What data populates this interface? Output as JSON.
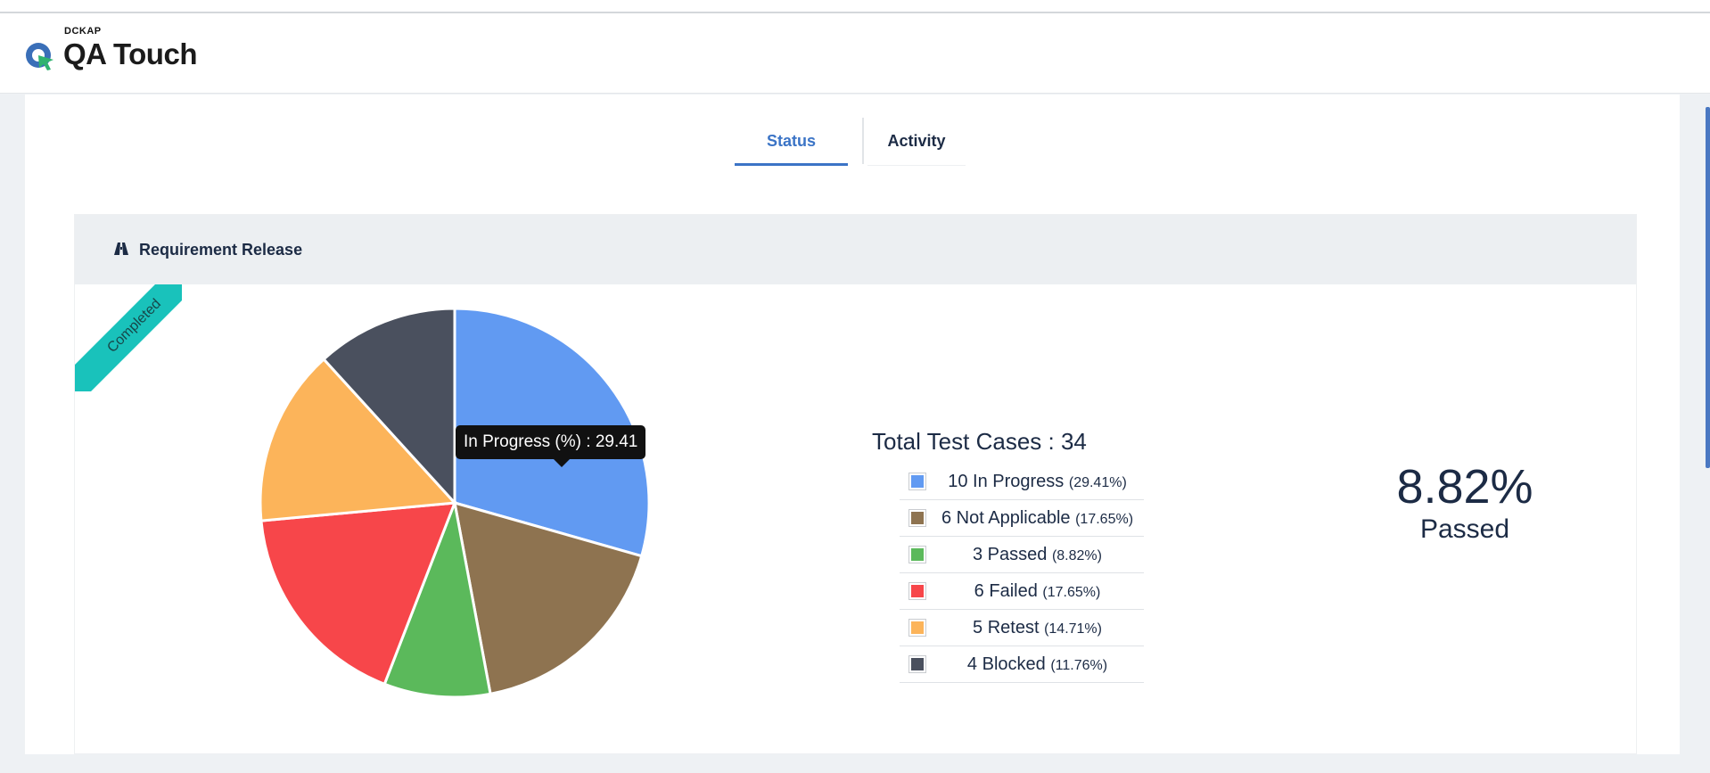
{
  "brand": {
    "company": "DCKAP",
    "product": "QA Touch"
  },
  "tabs": [
    {
      "label": "Status",
      "active": true
    },
    {
      "label": "Activity",
      "active": false
    }
  ],
  "card": {
    "title": "Requirement Release",
    "ribbon": "Completed"
  },
  "tooltip": "In Progress (%) : 29.41",
  "legend": {
    "title": "Total Test Cases : 34",
    "items": [
      {
        "label": "10 In Progress",
        "pct": "(29.41%)",
        "color": "#619af2"
      },
      {
        "label": "6 Not Applicable",
        "pct": "(17.65%)",
        "color": "#8e7350"
      },
      {
        "label": "3 Passed",
        "pct": "(8.82%)",
        "color": "#5bb95b"
      },
      {
        "label": "6 Failed",
        "pct": "(17.65%)",
        "color": "#f7464a"
      },
      {
        "label": "5 Retest",
        "pct": "(14.71%)",
        "color": "#fcb45a"
      },
      {
        "label": "4 Blocked",
        "pct": "(11.76%)",
        "color": "#4a505e"
      }
    ]
  },
  "summary": {
    "value": "8.82%",
    "label": "Passed"
  },
  "chart_data": {
    "type": "pie",
    "categories": [
      "In Progress",
      "Not Applicable",
      "Passed",
      "Failed",
      "Retest",
      "Blocked"
    ],
    "values": [
      10,
      6,
      3,
      6,
      5,
      4
    ],
    "colors": [
      "#619af2",
      "#8e7350",
      "#5bb95b",
      "#f7464a",
      "#fcb45a",
      "#4a505e"
    ],
    "total": 34
  },
  "colors": {
    "accent": "#3b74c6",
    "ribbon": "#19c2bb",
    "text": "#1c2b45"
  }
}
